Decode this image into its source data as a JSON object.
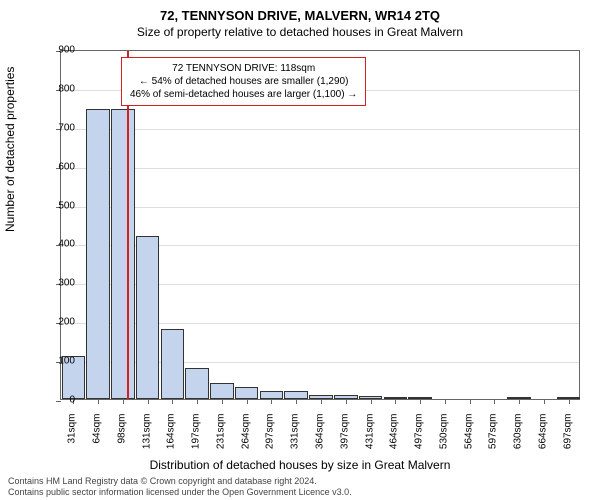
{
  "title_main": "72, TENNYSON DRIVE, MALVERN, WR14 2TQ",
  "title_sub": "Size of property relative to detached houses in Great Malvern",
  "chart": {
    "type": "histogram",
    "categories": [
      "31sqm",
      "64sqm",
      "98sqm",
      "131sqm",
      "164sqm",
      "197sqm",
      "231sqm",
      "264sqm",
      "297sqm",
      "331sqm",
      "364sqm",
      "397sqm",
      "431sqm",
      "464sqm",
      "497sqm",
      "530sqm",
      "564sqm",
      "597sqm",
      "630sqm",
      "664sqm",
      "697sqm"
    ],
    "values": [
      110,
      745,
      745,
      420,
      180,
      80,
      40,
      30,
      20,
      20,
      10,
      10,
      8,
      6,
      5,
      0,
      0,
      0,
      3,
      0,
      2
    ],
    "bar_color": "#c5d4ed",
    "bar_border_color": "#333333",
    "background_color": "#ffffff",
    "grid_color": "#dddddd",
    "ylim": [
      0,
      900
    ],
    "ytick_step": 100,
    "reference_line": {
      "position_category_index": 2.65,
      "color": "#d32020"
    },
    "ylabel": "Number of detached properties",
    "xlabel": "Distribution of detached houses by size in Great Malvern",
    "label_fontsize": 12,
    "tick_fontsize": 10
  },
  "annotation": {
    "line1": "72 TENNYSON DRIVE: 118sqm",
    "line2": "← 54% of detached houses are smaller (1,290)",
    "line3": "46% of semi-detached houses are larger (1,100) →",
    "border_color": "#d32020"
  },
  "footer": {
    "line1": "Contains HM Land Registry data © Crown copyright and database right 2024.",
    "line2": "Contains public sector information licensed under the Open Government Licence v3.0."
  }
}
